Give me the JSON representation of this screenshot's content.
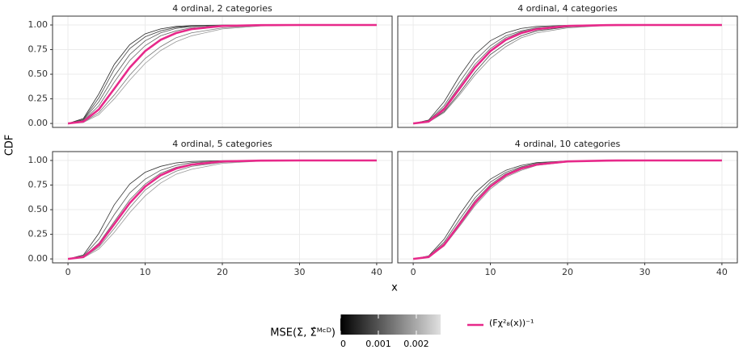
{
  "chart_data": [
    {
      "type": "line",
      "title": "4 ordinal, 2 categories",
      "x": [
        0,
        2,
        4,
        6,
        8,
        10,
        12,
        14,
        16,
        20,
        25,
        30,
        40
      ],
      "xlim": [
        -2,
        42
      ],
      "ylim": [
        -0.04,
        1.09
      ],
      "yticks": [
        {
          "value": 0,
          "label": "0.00"
        },
        {
          "value": 0.25,
          "label": "0.25"
        },
        {
          "value": 0.5,
          "label": "0.50"
        },
        {
          "value": 0.75,
          "label": "0.75"
        },
        {
          "value": 1,
          "label": "1.00"
        }
      ],
      "series": [
        {
          "color": "#222222",
          "values": [
            0,
            0.05,
            0.3,
            0.6,
            0.8,
            0.91,
            0.96,
            0.985,
            0.994,
            0.999,
            1,
            1,
            1
          ]
        },
        {
          "color": "#444444",
          "values": [
            0,
            0.04,
            0.26,
            0.55,
            0.76,
            0.88,
            0.94,
            0.975,
            0.99,
            0.998,
            1,
            1,
            1
          ]
        },
        {
          "color": "#555555",
          "values": [
            0,
            0.035,
            0.22,
            0.48,
            0.7,
            0.84,
            0.92,
            0.965,
            0.985,
            0.997,
            1,
            1,
            1
          ]
        },
        {
          "color": "#666666",
          "values": [
            0,
            0.027,
            0.18,
            0.42,
            0.64,
            0.79,
            0.89,
            0.94,
            0.972,
            0.994,
            0.9995,
            1,
            1
          ]
        },
        {
          "color": "#777777",
          "values": [
            0,
            0.013,
            0.11,
            0.29,
            0.49,
            0.66,
            0.78,
            0.87,
            0.92,
            0.97,
            0.995,
            0.999,
            1
          ]
        },
        {
          "color": "#999999",
          "values": [
            0,
            0.01,
            0.09,
            0.25,
            0.44,
            0.61,
            0.74,
            0.83,
            0.89,
            0.96,
            0.99,
            0.998,
            1
          ]
        },
        {
          "color": "#e7298a",
          "values": [
            0,
            0.019,
            0.143,
            0.353,
            0.567,
            0.735,
            0.849,
            0.918,
            0.958,
            0.99,
            0.9987,
            0.9999,
            1
          ]
        }
      ]
    },
    {
      "type": "line",
      "title": "4 ordinal, 4 categories",
      "x": [
        0,
        2,
        4,
        6,
        8,
        10,
        12,
        14,
        16,
        20,
        25,
        30,
        40
      ],
      "xlim": [
        -2,
        42
      ],
      "ylim": [
        -0.04,
        1.09
      ],
      "series": [
        {
          "color": "#333333",
          "values": [
            0,
            0.035,
            0.22,
            0.48,
            0.7,
            0.84,
            0.92,
            0.965,
            0.985,
            0.997,
            1,
            1,
            1
          ]
        },
        {
          "color": "#555555",
          "values": [
            0,
            0.027,
            0.18,
            0.42,
            0.64,
            0.79,
            0.89,
            0.94,
            0.972,
            0.994,
            0.9995,
            1,
            1
          ]
        },
        {
          "color": "#666666",
          "values": [
            0,
            0.022,
            0.16,
            0.38,
            0.6,
            0.76,
            0.87,
            0.93,
            0.965,
            0.992,
            0.999,
            1,
            1
          ]
        },
        {
          "color": "#444444",
          "values": [
            0,
            0.015,
            0.12,
            0.31,
            0.52,
            0.7,
            0.81,
            0.89,
            0.94,
            0.98,
            0.997,
            0.9995,
            1
          ]
        },
        {
          "color": "#888888",
          "values": [
            0,
            0.013,
            0.11,
            0.29,
            0.49,
            0.66,
            0.78,
            0.87,
            0.92,
            0.97,
            0.995,
            0.999,
            1
          ]
        },
        {
          "color": "#e7298a",
          "values": [
            0,
            0.019,
            0.143,
            0.353,
            0.567,
            0.735,
            0.849,
            0.918,
            0.958,
            0.99,
            0.9987,
            0.9999,
            1
          ]
        }
      ]
    },
    {
      "type": "line",
      "title": "4 ordinal, 5 categories",
      "x": [
        0,
        2,
        4,
        6,
        8,
        10,
        12,
        14,
        16,
        20,
        25,
        30,
        40
      ],
      "xlim": [
        -2,
        42
      ],
      "ylim": [
        -0.04,
        1.09
      ],
      "xticks": [
        0,
        10,
        20,
        30,
        40
      ],
      "yticks": [
        {
          "value": 0,
          "label": "0.00"
        },
        {
          "value": 0.25,
          "label": "0.25"
        },
        {
          "value": 0.5,
          "label": "0.50"
        },
        {
          "value": 0.75,
          "label": "0.75"
        },
        {
          "value": 1,
          "label": "1.00"
        }
      ],
      "series": [
        {
          "color": "#333333",
          "values": [
            0,
            0.04,
            0.26,
            0.55,
            0.76,
            0.88,
            0.94,
            0.975,
            0.99,
            0.998,
            1,
            1,
            1
          ]
        },
        {
          "color": "#555555",
          "values": [
            0,
            0.03,
            0.2,
            0.45,
            0.67,
            0.81,
            0.9,
            0.95,
            0.978,
            0.995,
            1,
            1,
            1
          ]
        },
        {
          "color": "#666666",
          "values": [
            0,
            0.022,
            0.16,
            0.38,
            0.6,
            0.76,
            0.87,
            0.93,
            0.965,
            0.992,
            0.999,
            1,
            1
          ]
        },
        {
          "color": "#777777",
          "values": [
            0,
            0.015,
            0.12,
            0.31,
            0.52,
            0.7,
            0.81,
            0.89,
            0.94,
            0.98,
            0.997,
            0.9995,
            1
          ]
        },
        {
          "color": "#999999",
          "values": [
            0,
            0.012,
            0.1,
            0.27,
            0.47,
            0.64,
            0.77,
            0.86,
            0.91,
            0.97,
            0.994,
            0.999,
            1
          ]
        },
        {
          "color": "#e7298a",
          "values": [
            0,
            0.019,
            0.143,
            0.353,
            0.567,
            0.735,
            0.849,
            0.918,
            0.958,
            0.99,
            0.9987,
            0.9999,
            1
          ]
        }
      ]
    },
    {
      "type": "line",
      "title": "4 ordinal, 10 categories",
      "x": [
        0,
        2,
        4,
        6,
        8,
        10,
        12,
        14,
        16,
        20,
        25,
        30,
        40
      ],
      "xlim": [
        -2,
        42
      ],
      "ylim": [
        -0.04,
        1.09
      ],
      "xticks": [
        0,
        10,
        20,
        30,
        40
      ],
      "series": [
        {
          "color": "#333333",
          "values": [
            0,
            0.03,
            0.2,
            0.45,
            0.67,
            0.81,
            0.9,
            0.95,
            0.978,
            0.995,
            1,
            1,
            1
          ]
        },
        {
          "color": "#555555",
          "values": [
            0,
            0.025,
            0.17,
            0.4,
            0.62,
            0.78,
            0.88,
            0.935,
            0.97,
            0.993,
            0.999,
            1,
            1
          ]
        },
        {
          "color": "#666666",
          "values": [
            0,
            0.021,
            0.155,
            0.37,
            0.59,
            0.755,
            0.865,
            0.928,
            0.963,
            0.991,
            0.999,
            1,
            1
          ]
        },
        {
          "color": "#888888",
          "values": [
            0,
            0.017,
            0.13,
            0.33,
            0.54,
            0.71,
            0.83,
            0.9,
            0.95,
            0.985,
            0.998,
            1,
            1
          ]
        },
        {
          "color": "#e7298a",
          "values": [
            0,
            0.019,
            0.143,
            0.353,
            0.567,
            0.735,
            0.849,
            0.918,
            0.958,
            0.99,
            0.9987,
            0.9999,
            1
          ]
        }
      ]
    }
  ],
  "axis_labels": {
    "x": "x",
    "y": "CDF"
  },
  "legend": {
    "colorbar_title": "MSE(Σ, Σ̂ᴹᶜᴰ)",
    "colorbar_lim": [
      0,
      0.00264
    ],
    "colorbar_ticks": [
      0,
      0.001,
      0.002
    ],
    "line_label": "(Fχ²₈(x))⁻¹",
    "line_color": "#e7298a"
  }
}
